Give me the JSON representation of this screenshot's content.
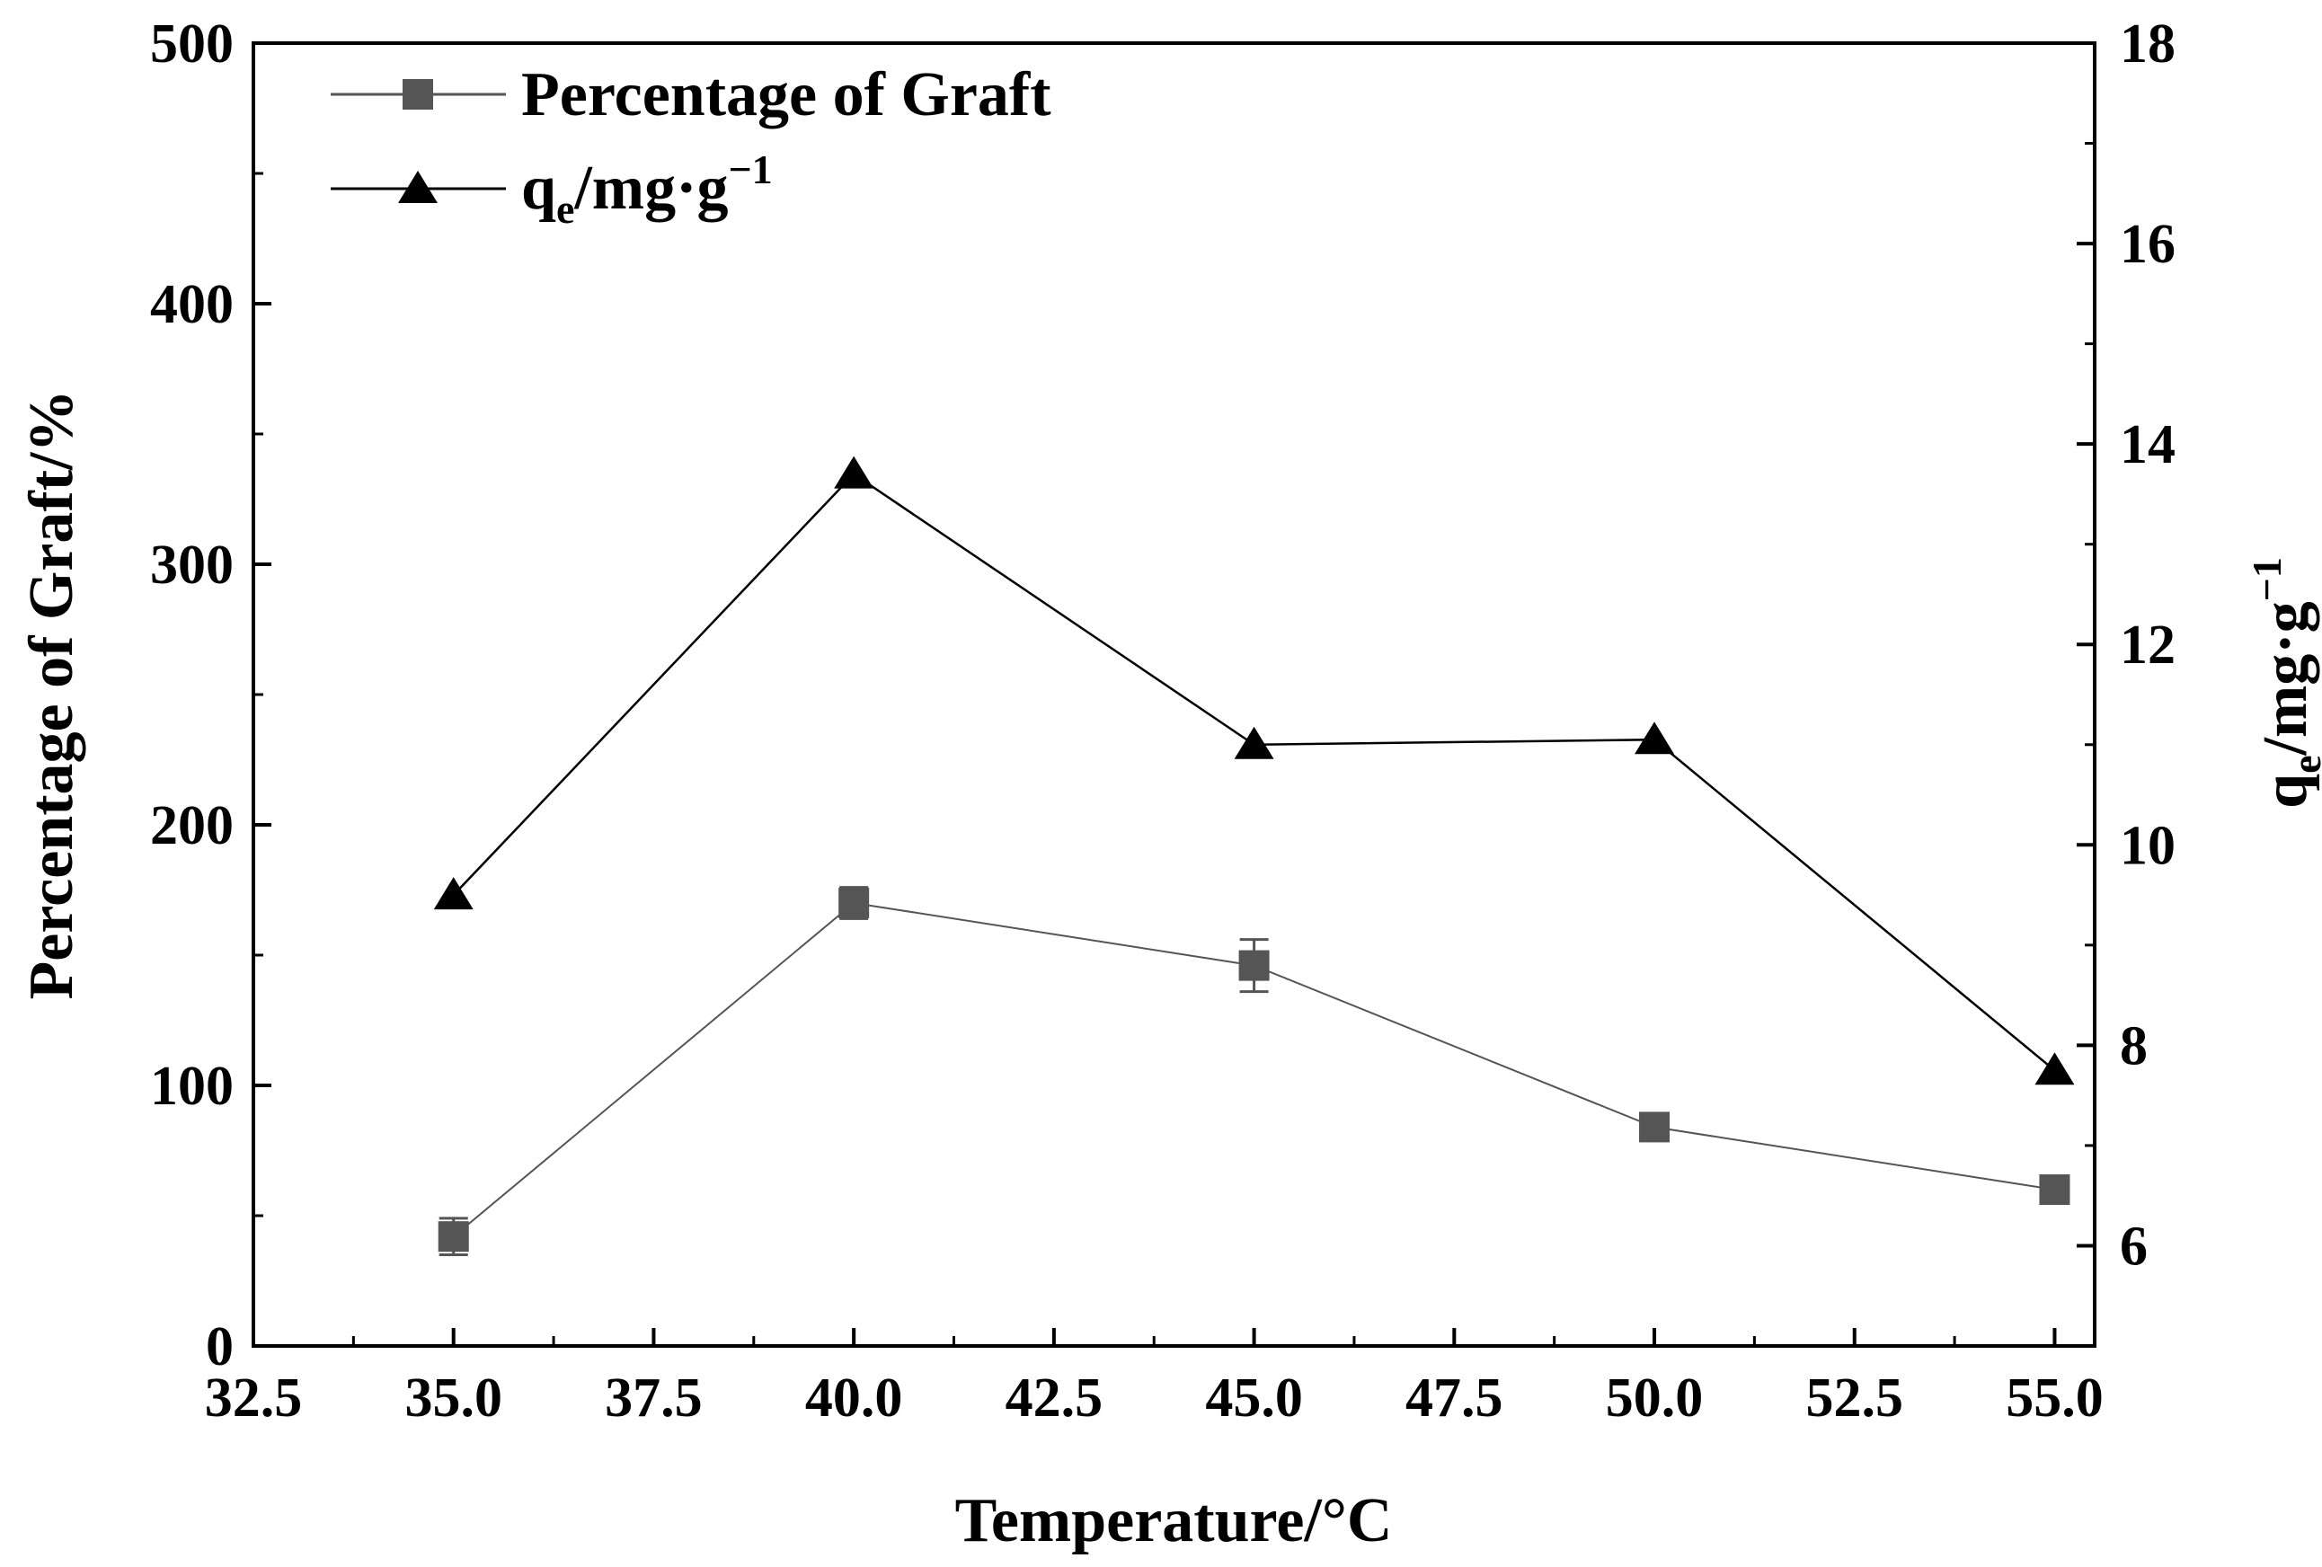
{
  "chart_data": {
    "type": "line",
    "title": "",
    "xlabel": "Temperature/°C",
    "ylabel_left": "Percentage of Graft/%",
    "ylabel_right": {
      "base": "q",
      "sub": "e",
      "rest": "/mg·g",
      "sup": "−1"
    },
    "xlim": [
      32.5,
      55.5
    ],
    "ylim_left": [
      0,
      500
    ],
    "ylim_right": [
      5,
      18
    ],
    "x_ticks": [
      32.5,
      35.0,
      37.5,
      40.0,
      42.5,
      45.0,
      47.5,
      50.0,
      52.5,
      55.0
    ],
    "x_tick_labels": [
      "32.5",
      "35.0",
      "37.5",
      "40.0",
      "42.5",
      "45.0",
      "47.5",
      "50.0",
      "52.5",
      "55.0"
    ],
    "y_left_ticks": [
      0,
      100,
      200,
      300,
      400,
      500
    ],
    "y_left_tick_labels": [
      "0",
      "100",
      "200",
      "300",
      "400",
      "500"
    ],
    "y_right_ticks": [
      6,
      8,
      10,
      12,
      14,
      16,
      18
    ],
    "y_right_tick_labels": [
      "6",
      "8",
      "10",
      "12",
      "14",
      "16",
      "18"
    ],
    "grid": false,
    "legend_position": "top-left",
    "series": [
      {
        "name": "Percentage of Graft",
        "axis": "left",
        "marker": "square",
        "color": "#555555",
        "x": [
          35,
          40,
          45,
          50,
          55
        ],
        "values": [
          42,
          170,
          146,
          84,
          60
        ],
        "errors": [
          7,
          6,
          10,
          3,
          2
        ]
      },
      {
        "name": "qe/mg·g−1",
        "legend_label": {
          "base": "q",
          "sub": "e",
          "rest": "/mg·g",
          "sup": "−1"
        },
        "axis": "right",
        "marker": "triangle",
        "color": "#000000",
        "x": [
          35,
          40,
          45,
          50,
          55
        ],
        "values": [
          9.5,
          13.7,
          11.0,
          11.05,
          7.75
        ]
      }
    ]
  }
}
